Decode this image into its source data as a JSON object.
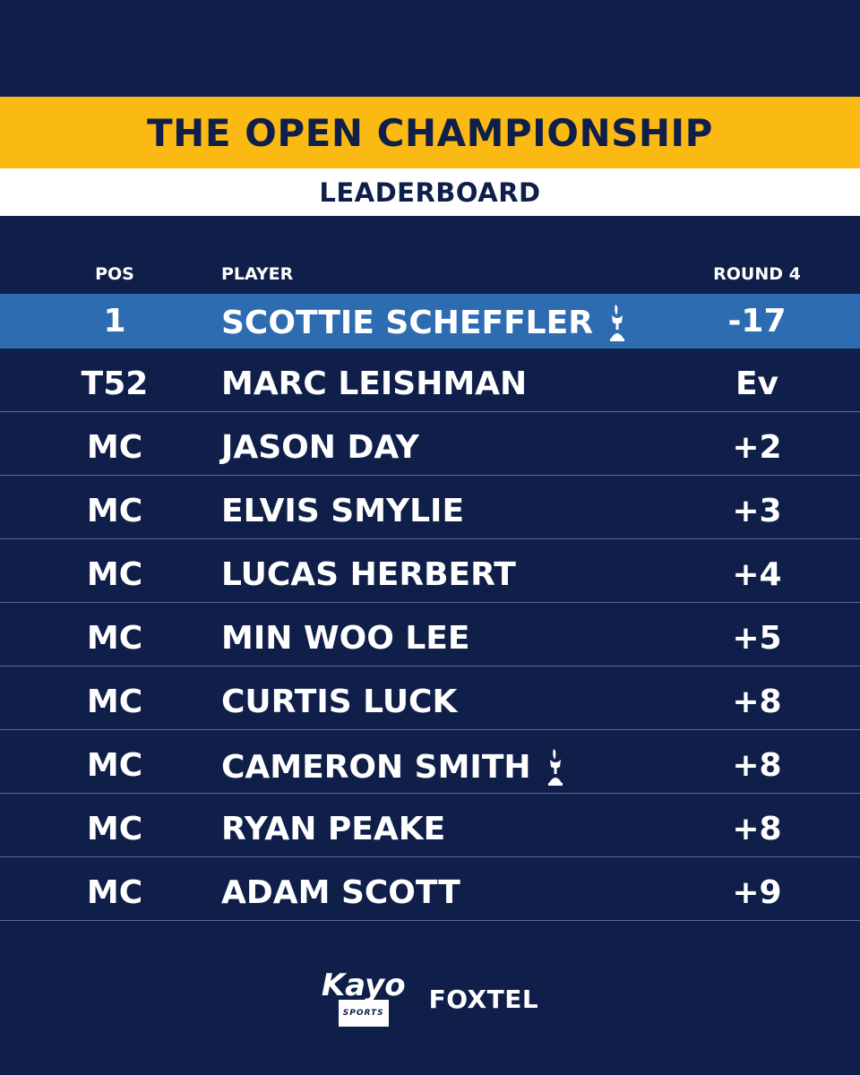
{
  "header": {
    "title": "THE OPEN CHAMPIONSHIP",
    "subtitle": "LEADERBOARD",
    "colors": {
      "background": "#0f1f4a",
      "title_bar": "#fbb914",
      "subtitle_bar": "#ffffff",
      "leader_highlight": "#2e6cb2"
    }
  },
  "columns": {
    "pos": "POS",
    "player": "PLAYER",
    "round": "ROUND 4"
  },
  "rows": [
    {
      "pos": "1",
      "player": "SCOTTIE SCHEFFLER",
      "score": "-17",
      "trophy": true,
      "highlight": true
    },
    {
      "pos": "T52",
      "player": "MARC LEISHMAN",
      "score": "Ev",
      "trophy": false
    },
    {
      "pos": "MC",
      "player": "JASON DAY",
      "score": "+2",
      "trophy": false
    },
    {
      "pos": "MC",
      "player": "ELVIS SMYLIE",
      "score": "+3",
      "trophy": false
    },
    {
      "pos": "MC",
      "player": "LUCAS HERBERT",
      "score": "+4",
      "trophy": false
    },
    {
      "pos": "MC",
      "player": "MIN WOO LEE",
      "score": "+5",
      "trophy": false
    },
    {
      "pos": "MC",
      "player": "CURTIS LUCK",
      "score": "+8",
      "trophy": false
    },
    {
      "pos": "MC",
      "player": "CAMERON SMITH",
      "score": "+8",
      "trophy": true
    },
    {
      "pos": "MC",
      "player": "RYAN PEAKE",
      "score": "+8",
      "trophy": false
    },
    {
      "pos": "MC",
      "player": "ADAM SCOTT",
      "score": "+9",
      "trophy": false
    }
  ],
  "footer": {
    "kayo_logo": "Kayo",
    "kayo_sub": "SPORTS",
    "foxtel_logo": "FOXTEL"
  }
}
